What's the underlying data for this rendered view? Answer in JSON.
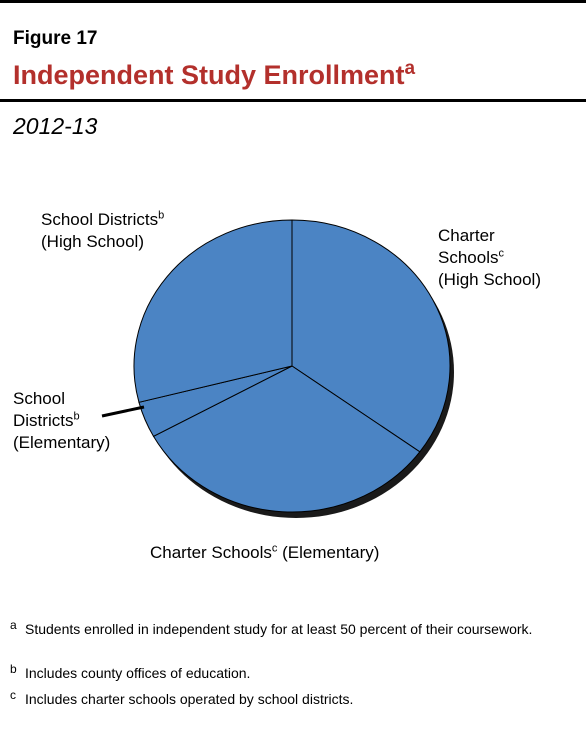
{
  "figure_label": "Figure 17",
  "title": "Independent Study Enrollment",
  "title_note": "a",
  "subtitle": "2012-13",
  "colors": {
    "slice": "#4b84c4",
    "shadow": "#1a1a1a",
    "title": "#b3302c"
  },
  "chart_data": {
    "type": "pie",
    "title": "Independent Study Enrollment",
    "labels": [
      "Charter Schools (High School)",
      "Charter Schools (Elementary)",
      "School Districts (Elementary)",
      "School Districts (High School)"
    ],
    "values": [
      35,
      32,
      4,
      29
    ],
    "unit": "percent",
    "start_angle_deg": 0,
    "direction": "clockwise"
  },
  "labels": {
    "cs_high": {
      "l1": "Charter",
      "l2": "Schools",
      "sup": "c",
      "l3": "(High School)"
    },
    "cs_elem": {
      "l1": "Charter Schools",
      "sup": "c",
      "l2": " (Elementary)"
    },
    "sd_elem": {
      "l1": "School",
      "l2": "Districts",
      "sup": "b",
      "l3": "(Elementary)"
    },
    "sd_high": {
      "l1": "School Districts",
      "sup": "b",
      "l2": "(High School)"
    }
  },
  "footnotes": [
    {
      "mark": "a",
      "text": "Students enrolled in independent study for at least 50 percent of their coursework."
    },
    {
      "mark": "b",
      "text": "Includes county offices of education."
    },
    {
      "mark": "c",
      "text": "Includes charter schools operated by school districts."
    }
  ]
}
